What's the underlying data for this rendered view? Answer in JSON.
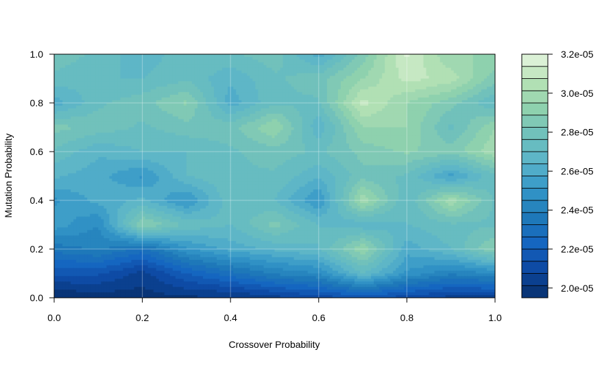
{
  "chart_data": {
    "type": "heatmap",
    "subtype": "filled-contour",
    "xlabel": "Crossover Probability",
    "ylabel": "Mutation Probability",
    "xlim": [
      0,
      1
    ],
    "ylim": [
      0,
      1
    ],
    "x_ticks": [
      "0.0",
      "0.2",
      "0.4",
      "0.6",
      "0.8",
      "1.0"
    ],
    "y_ticks": [
      "0.0",
      "0.2",
      "0.4",
      "0.6",
      "0.8",
      "1.0"
    ],
    "grid": true,
    "colorbar": {
      "position": "right",
      "min": 1.95e-05,
      "max": 3.2e-05,
      "levels": 20,
      "tick_labels": [
        "2.0e-05",
        "2.2e-05",
        "2.4e-05",
        "2.6e-05",
        "2.8e-05",
        "3.0e-05",
        "3.2e-05"
      ],
      "tick_values": [
        2e-05,
        2.2e-05,
        2.4e-05,
        2.6e-05,
        2.8e-05,
        3e-05,
        3.2e-05
      ],
      "colors": [
        "#08306b",
        "#0d47a1",
        "#1565c0",
        "#1f7ab8",
        "#3496c8",
        "#5ab4c9",
        "#6fc0bc",
        "#8fd1ae",
        "#b6e2b5",
        "#e6f5df"
      ]
    },
    "x": [
      0.0,
      0.1,
      0.2,
      0.3,
      0.4,
      0.5,
      0.6,
      0.7,
      0.8,
      0.9,
      1.0
    ],
    "y": [
      0.0,
      0.1,
      0.2,
      0.3,
      0.4,
      0.5,
      0.6,
      0.7,
      0.8,
      0.9,
      1.0
    ],
    "z_rows_by_y": [
      [
        1.95e-05,
        1.97e-05,
        1.98e-05,
        2e-05,
        2e-05,
        2.05e-05,
        2.1e-05,
        2.15e-05,
        2.1e-05,
        2.05e-05,
        2.05e-05
      ],
      [
        2.15e-05,
        2.15e-05,
        2.05e-05,
        2.2e-05,
        2.3e-05,
        2.4e-05,
        2.45e-05,
        2.7e-05,
        2.5e-05,
        2.4e-05,
        2.45e-05
      ],
      [
        2.35e-05,
        2.4e-05,
        2.3e-05,
        2.5e-05,
        2.6e-05,
        2.65e-05,
        2.7e-05,
        2.95e-05,
        2.6e-05,
        2.7e-05,
        2.9e-05
      ],
      [
        2.55e-05,
        2.45e-05,
        2.9e-05,
        2.75e-05,
        2.7e-05,
        2.85e-05,
        2.7e-05,
        2.65e-05,
        2.7e-05,
        2.75e-05,
        2.75e-05
      ],
      [
        2.5e-05,
        2.6e-05,
        2.65e-05,
        2.5e-05,
        2.75e-05,
        2.7e-05,
        2.5e-05,
        3e-05,
        2.7e-05,
        3e-05,
        2.75e-05
      ],
      [
        2.65e-05,
        2.6e-05,
        2.5e-05,
        2.7e-05,
        2.75e-05,
        2.75e-05,
        2.65e-05,
        2.8e-05,
        2.75e-05,
        2.55e-05,
        2.75e-05
      ],
      [
        2.75e-05,
        2.65e-05,
        2.7e-05,
        2.7e-05,
        2.75e-05,
        2.8e-05,
        2.75e-05,
        2.85e-05,
        2.9e-05,
        2.85e-05,
        3e-05
      ],
      [
        2.85e-05,
        2.8e-05,
        2.75e-05,
        2.8e-05,
        2.8e-05,
        2.95e-05,
        2.65e-05,
        2.95e-05,
        2.95e-05,
        2.75e-05,
        2.95e-05
      ],
      [
        2.6e-05,
        2.75e-05,
        2.8e-05,
        2.9e-05,
        2.6e-05,
        2.75e-05,
        2.75e-05,
        3.1e-05,
        2.95e-05,
        2.85e-05,
        2.7e-05
      ],
      [
        2.75e-05,
        2.7e-05,
        2.7e-05,
        2.75e-05,
        2.65e-05,
        2.75e-05,
        2.8e-05,
        2.95e-05,
        3.1e-05,
        3.05e-05,
        2.85e-05
      ],
      [
        2.8e-05,
        2.75e-05,
        2.65e-05,
        2.75e-05,
        2.75e-05,
        2.8e-05,
        2.6e-05,
        2.85e-05,
        3.15e-05,
        2.95e-05,
        2.95e-05
      ]
    ]
  }
}
